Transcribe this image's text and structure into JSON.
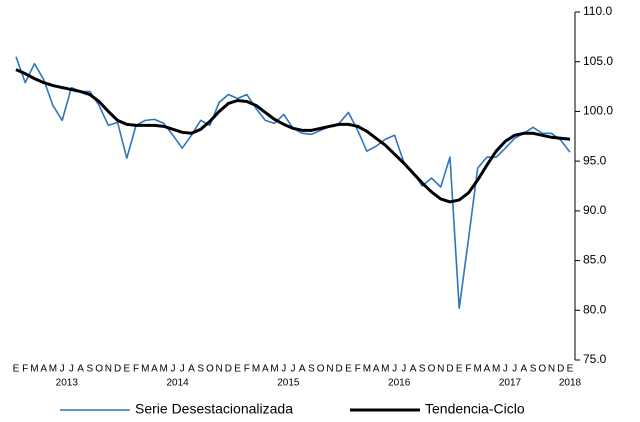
{
  "chart_data": {
    "type": "line",
    "categories": [
      "E",
      "F",
      "M",
      "A",
      "M",
      "J",
      "J",
      "A",
      "S",
      "O",
      "N",
      "D",
      "E",
      "F",
      "M",
      "A",
      "M",
      "J",
      "J",
      "A",
      "S",
      "O",
      "N",
      "D",
      "E",
      "F",
      "M",
      "A",
      "M",
      "J",
      "J",
      "A",
      "S",
      "O",
      "N",
      "D",
      "E",
      "F",
      "M",
      "A",
      "M",
      "J",
      "J",
      "A",
      "S",
      "O",
      "N",
      "D",
      "E",
      "F",
      "M",
      "A",
      "M",
      "J",
      "J",
      "A",
      "S",
      "O",
      "N",
      "D",
      "E"
    ],
    "years": [
      "2013",
      "2014",
      "2015",
      "2016",
      "2017",
      "2018"
    ],
    "series": [
      {
        "name": "Serie Desestacionalizada",
        "color": "#2e75c0",
        "width": 1.6,
        "values": [
          105.5,
          102.9,
          104.8,
          103.2,
          100.6,
          99.1,
          102.4,
          102.0,
          102.0,
          100.6,
          98.6,
          98.9,
          95.3,
          98.6,
          99.1,
          99.2,
          98.8,
          97.6,
          96.3,
          97.6,
          99.1,
          98.6,
          100.9,
          101.7,
          101.3,
          101.7,
          100.3,
          99.1,
          98.8,
          99.7,
          98.3,
          97.8,
          97.7,
          98.1,
          98.5,
          98.8,
          99.9,
          98.1,
          96.0,
          96.5,
          97.2,
          97.6,
          94.9,
          93.9,
          92.5,
          93.3,
          92.4,
          95.4,
          80.2,
          87.1,
          94.3,
          95.4,
          95.4,
          96.3,
          97.3,
          97.8,
          98.4,
          97.8,
          97.8,
          97.1,
          95.9
        ]
      },
      {
        "name": "Tendencia-Ciclo",
        "color": "#000000",
        "width": 3,
        "values": [
          104.2,
          103.8,
          103.3,
          102.9,
          102.6,
          102.4,
          102.2,
          102.0,
          101.7,
          101.0,
          100.0,
          99.1,
          98.7,
          98.6,
          98.6,
          98.6,
          98.5,
          98.2,
          97.9,
          97.8,
          98.2,
          99.0,
          100.0,
          100.8,
          101.1,
          101.0,
          100.6,
          99.9,
          99.2,
          98.7,
          98.3,
          98.1,
          98.1,
          98.3,
          98.5,
          98.7,
          98.7,
          98.5,
          98.0,
          97.3,
          96.6,
          95.7,
          94.8,
          93.8,
          92.8,
          91.9,
          91.2,
          90.9,
          91.1,
          91.8,
          93.1,
          94.6,
          96.0,
          97.0,
          97.6,
          97.8,
          97.8,
          97.6,
          97.4,
          97.3,
          97.2
        ]
      }
    ],
    "ylim": [
      75,
      110
    ],
    "yticks": [
      {
        "value": 75,
        "label": "75.0"
      },
      {
        "value": 80,
        "label": "80.0"
      },
      {
        "value": 85,
        "label": "85.0"
      },
      {
        "value": 90,
        "label": "90.0"
      },
      {
        "value": 95,
        "label": "95.0"
      },
      {
        "value": 100,
        "label": "100.0"
      },
      {
        "value": 105,
        "label": "105.0"
      },
      {
        "value": 110,
        "label": "110.0"
      }
    ],
    "y_axis_side": "right",
    "grid": false,
    "legend": "bottom"
  }
}
